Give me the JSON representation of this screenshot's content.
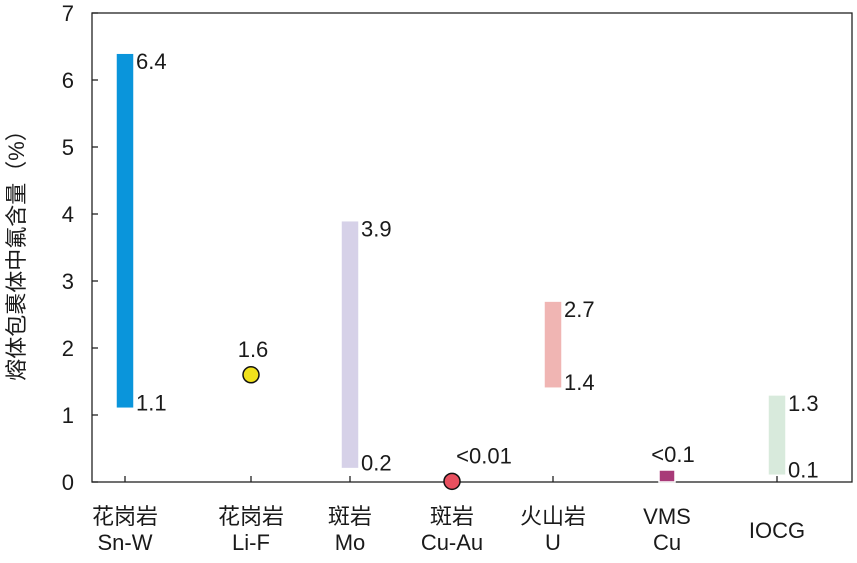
{
  "chart_data": {
    "type": "bar",
    "ylabel": "熔体包裹体中氟含量（%）",
    "ylim": [
      0,
      7
    ],
    "yticks": [
      0,
      1,
      2,
      3,
      4,
      5,
      6,
      7
    ],
    "grid": false,
    "categories": [
      [
        "花岗岩",
        "Sn-W"
      ],
      [
        "花岗岩",
        "Li-F"
      ],
      [
        "斑岩",
        "Mo"
      ],
      [
        "斑岩",
        "Cu-Au"
      ],
      [
        "火山岩",
        "U"
      ],
      [
        "VMS",
        "Cu"
      ],
      [
        "IOCG"
      ]
    ],
    "series": [
      {
        "category": 0,
        "kind": "range",
        "low": 1.1,
        "high": 6.4,
        "low_label": "1.1",
        "high_label": "6.4",
        "color": "#0a95db",
        "edge": "#ffffff"
      },
      {
        "category": 1,
        "kind": "point",
        "value": 1.6,
        "label": "1.6",
        "color": "#f0e11c",
        "edge": "#111111"
      },
      {
        "category": 2,
        "kind": "range",
        "low": 0.2,
        "high": 3.9,
        "low_label": "0.2",
        "high_label": "3.9",
        "color": "#d6d1e8",
        "edge": "#ffffff"
      },
      {
        "category": 3,
        "kind": "point",
        "value": 0.01,
        "label": "<0.01",
        "color": "#e8505f",
        "edge": "#111111"
      },
      {
        "category": 4,
        "kind": "range",
        "low": 1.4,
        "high": 2.7,
        "low_label": "1.4",
        "high_label": "2.7",
        "color": "#f0b5b3",
        "edge": "#ffffff"
      },
      {
        "category": 5,
        "kind": "range",
        "low": 0.0,
        "high": 0.1,
        "low_label": "",
        "high_label": "<0.1",
        "color": "#a83a78",
        "edge": "#ffffff"
      },
      {
        "category": 6,
        "kind": "range",
        "low": 0.1,
        "high": 1.3,
        "low_label": "0.1",
        "high_label": "1.3",
        "color": "#d8eadc",
        "edge": "#ffffff"
      }
    ]
  }
}
